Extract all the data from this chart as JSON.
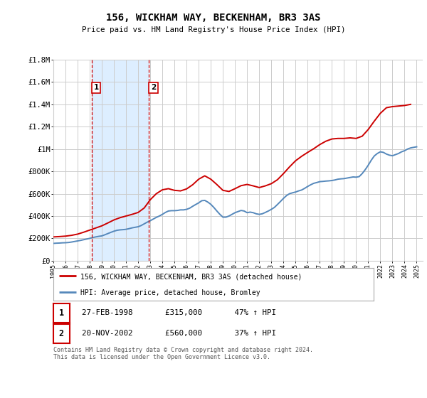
{
  "title": "156, WICKHAM WAY, BECKENHAM, BR3 3AS",
  "subtitle": "Price paid vs. HM Land Registry's House Price Index (HPI)",
  "ylim": [
    0,
    1800000
  ],
  "yticks": [
    0,
    200000,
    400000,
    600000,
    800000,
    1000000,
    1200000,
    1400000,
    1600000,
    1800000
  ],
  "ytick_labels": [
    "£0",
    "£200K",
    "£400K",
    "£600K",
    "£800K",
    "£1M",
    "£1.2M",
    "£1.4M",
    "£1.6M",
    "£1.8M"
  ],
  "xmin": 1995.0,
  "xmax": 2025.5,
  "transactions": [
    {
      "label": "1",
      "date_str": "27-FEB-1998",
      "year": 1998.16,
      "price": "315,000",
      "pct": "47% ↑ HPI"
    },
    {
      "label": "2",
      "date_str": "20-NOV-2002",
      "year": 2002.89,
      "price": "560,000",
      "pct": "37% ↑ HPI"
    }
  ],
  "highlight_color": "#ddeeff",
  "transaction_box_color": "#cc0000",
  "red_line_color": "#cc0000",
  "blue_line_color": "#5588bb",
  "legend_line1": "156, WICKHAM WAY, BECKENHAM, BR3 3AS (detached house)",
  "legend_line2": "HPI: Average price, detached house, Bromley",
  "footer": "Contains HM Land Registry data © Crown copyright and database right 2024.\nThis data is licensed under the Open Government Licence v3.0.",
  "background_color": "#ffffff",
  "grid_color": "#cccccc",
  "hpi_years": [
    1995.0,
    1995.25,
    1995.5,
    1995.75,
    1996.0,
    1996.25,
    1996.5,
    1996.75,
    1997.0,
    1997.25,
    1997.5,
    1997.75,
    1998.0,
    1998.25,
    1998.5,
    1998.75,
    1999.0,
    1999.25,
    1999.5,
    1999.75,
    2000.0,
    2000.25,
    2000.5,
    2000.75,
    2001.0,
    2001.25,
    2001.5,
    2001.75,
    2002.0,
    2002.25,
    2002.5,
    2002.75,
    2003.0,
    2003.25,
    2003.5,
    2003.75,
    2004.0,
    2004.25,
    2004.5,
    2004.75,
    2005.0,
    2005.25,
    2005.5,
    2005.75,
    2006.0,
    2006.25,
    2006.5,
    2006.75,
    2007.0,
    2007.25,
    2007.5,
    2007.75,
    2008.0,
    2008.25,
    2008.5,
    2008.75,
    2009.0,
    2009.25,
    2009.5,
    2009.75,
    2010.0,
    2010.25,
    2010.5,
    2010.75,
    2011.0,
    2011.25,
    2011.5,
    2011.75,
    2012.0,
    2012.25,
    2012.5,
    2012.75,
    2013.0,
    2013.25,
    2013.5,
    2013.75,
    2014.0,
    2014.25,
    2014.5,
    2014.75,
    2015.0,
    2015.25,
    2015.5,
    2015.75,
    2016.0,
    2016.25,
    2016.5,
    2016.75,
    2017.0,
    2017.25,
    2017.5,
    2017.75,
    2018.0,
    2018.25,
    2018.5,
    2018.75,
    2019.0,
    2019.25,
    2019.5,
    2019.75,
    2020.0,
    2020.25,
    2020.5,
    2020.75,
    2021.0,
    2021.25,
    2021.5,
    2021.75,
    2022.0,
    2022.25,
    2022.5,
    2022.75,
    2023.0,
    2023.25,
    2023.5,
    2023.75,
    2024.0,
    2024.25,
    2024.5,
    2024.75,
    2025.0
  ],
  "hpi_values": [
    155000,
    157000,
    158000,
    160000,
    161000,
    163000,
    167000,
    172000,
    177000,
    182000,
    188000,
    194000,
    200000,
    207000,
    213000,
    218000,
    222000,
    232000,
    243000,
    254000,
    264000,
    272000,
    276000,
    278000,
    281000,
    287000,
    294000,
    299000,
    304000,
    315000,
    330000,
    345000,
    358000,
    373000,
    388000,
    400000,
    415000,
    432000,
    445000,
    448000,
    448000,
    450000,
    455000,
    455000,
    460000,
    470000,
    487000,
    503000,
    518000,
    537000,
    540000,
    525000,
    505000,
    477000,
    445000,
    415000,
    390000,
    390000,
    400000,
    415000,
    430000,
    440000,
    450000,
    445000,
    430000,
    435000,
    430000,
    420000,
    415000,
    420000,
    432000,
    445000,
    460000,
    477000,
    503000,
    530000,
    558000,
    583000,
    600000,
    608000,
    615000,
    625000,
    633000,
    648000,
    665000,
    680000,
    693000,
    700000,
    708000,
    710000,
    713000,
    715000,
    718000,
    723000,
    730000,
    733000,
    735000,
    740000,
    745000,
    750000,
    748000,
    753000,
    780000,
    815000,
    855000,
    900000,
    938000,
    960000,
    975000,
    970000,
    955000,
    945000,
    940000,
    950000,
    960000,
    975000,
    985000,
    1000000,
    1010000,
    1015000,
    1020000
  ],
  "prop_years": [
    1995.0,
    1995.5,
    1996.0,
    1996.5,
    1997.0,
    1997.5,
    1998.0,
    1998.5,
    1999.0,
    1999.5,
    2000.0,
    2000.5,
    2001.0,
    2001.5,
    2002.0,
    2002.5,
    2003.0,
    2003.5,
    2004.0,
    2004.5,
    2005.0,
    2005.5,
    2006.0,
    2006.5,
    2007.0,
    2007.5,
    2008.0,
    2008.5,
    2009.0,
    2009.5,
    2010.0,
    2010.5,
    2011.0,
    2011.5,
    2012.0,
    2012.5,
    2013.0,
    2013.5,
    2014.0,
    2014.5,
    2015.0,
    2015.5,
    2016.0,
    2016.5,
    2017.0,
    2017.5,
    2018.0,
    2018.5,
    2019.0,
    2019.5,
    2020.0,
    2020.5,
    2021.0,
    2021.5,
    2022.0,
    2022.5,
    2023.0,
    2023.5,
    2024.0,
    2024.5
  ],
  "prop_values": [
    213000,
    216000,
    220000,
    227000,
    238000,
    255000,
    274000,
    293000,
    312000,
    338000,
    365000,
    385000,
    400000,
    415000,
    432000,
    472000,
    546000,
    600000,
    635000,
    645000,
    630000,
    625000,
    643000,
    680000,
    730000,
    760000,
    730000,
    682000,
    630000,
    620000,
    645000,
    672000,
    683000,
    670000,
    655000,
    670000,
    690000,
    725000,
    780000,
    840000,
    895000,
    935000,
    970000,
    1003000,
    1040000,
    1070000,
    1090000,
    1095000,
    1095000,
    1100000,
    1095000,
    1115000,
    1175000,
    1250000,
    1320000,
    1370000,
    1380000,
    1385000,
    1390000,
    1400000
  ]
}
